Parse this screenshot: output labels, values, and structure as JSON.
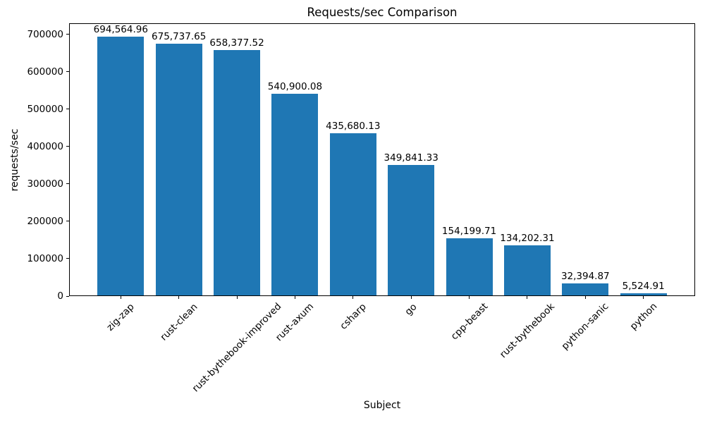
{
  "chart_data": {
    "type": "bar",
    "title": "Requests/sec Comparison",
    "xlabel": "Subject",
    "ylabel": "requests/sec",
    "categories": [
      "zig-zap",
      "rust-clean",
      "rust-bythebook-improved",
      "rust-axum",
      "csharp",
      "go",
      "cpp-beast",
      "rust-bythebook",
      "python-sanic",
      "python"
    ],
    "values": [
      694564.96,
      675737.65,
      658377.52,
      540900.08,
      435680.13,
      349841.33,
      154199.71,
      134202.31,
      32394.87,
      5524.91
    ],
    "bar_labels": [
      "694,564.96",
      "675,737.65",
      "658,377.52",
      "540,900.08",
      "435,680.13",
      "349,841.33",
      "154,199.71",
      "134,202.31",
      "32,394.87",
      "5,524.91"
    ],
    "y_ticks": [
      0,
      100000,
      200000,
      300000,
      400000,
      500000,
      600000,
      700000
    ],
    "ylim": [
      0,
      729293
    ],
    "bar_color": "#1f77b4",
    "grid": false,
    "legend_position": "none",
    "x_tick_rotation_deg": 45
  }
}
